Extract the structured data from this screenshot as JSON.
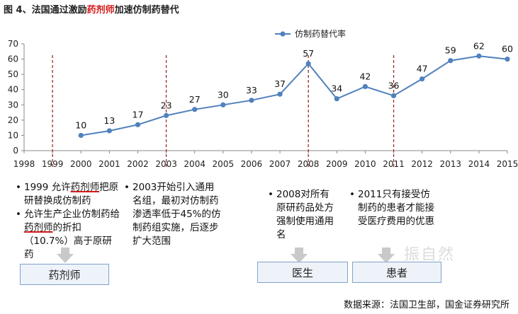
{
  "title": {
    "prefix": "图 4、法国通过激励",
    "highlight": "药剂师",
    "suffix": "加速仿制药替代"
  },
  "chart_data": {
    "type": "line",
    "legend": "仿制药替代率",
    "legend_position": "top-center",
    "x": [
      "1998",
      "1999",
      "2000",
      "2001",
      "2002",
      "2003",
      "2004",
      "2005",
      "2006",
      "2007",
      "2008",
      "2009",
      "2010",
      "2011",
      "2012",
      "2013",
      "2014",
      "2015"
    ],
    "series": [
      {
        "name": "仿制药替代率",
        "values": [
          null,
          null,
          10,
          13,
          17,
          23,
          27,
          30,
          33,
          37,
          57,
          34,
          42,
          36,
          47,
          59,
          62,
          60
        ],
        "color": "#4f81bd"
      }
    ],
    "yticks": [
      0,
      10,
      20,
      30,
      40,
      50,
      60,
      70
    ],
    "ylim": [
      0,
      70
    ],
    "grid": false,
    "markers": [
      "1999",
      "2003",
      "2008",
      "2011"
    ],
    "marker_color": "#9b2b2b"
  },
  "notes": {
    "pharmacist_1": {
      "a": "1999 允许",
      "b": "药剂师",
      "c": "把原研替换成仿制药"
    },
    "pharmacist_2": {
      "a": "允许生产企业仿制药给",
      "b": "药剂师",
      "c": "的折扣（10.7%）高于原研药"
    },
    "policy_2003": "2003开始引入通用名组，最初对仿制药渗透率低于45%的仿制药组实施，后逐步扩大范围",
    "doctor_2008": "2008对所有原研药品处方强制使用通用名",
    "patient_2011": "2011只有接受仿制药的患者才能接受医疗费用的优惠"
  },
  "boxes": {
    "pharmacist": "药剂师",
    "doctor": "医生",
    "patient": "患者"
  },
  "watermark": "振自然",
  "source": "数据来源：法国卫生部，国金证券研究所"
}
